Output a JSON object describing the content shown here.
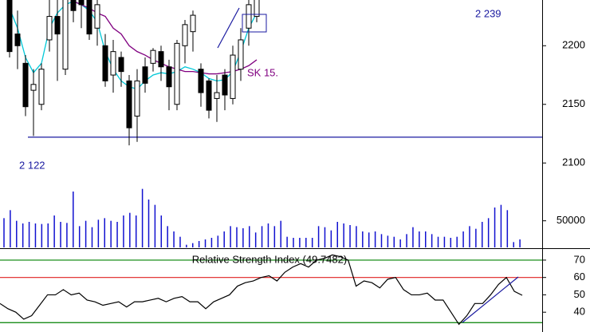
{
  "chart_data": [
    {
      "type": "candlestick",
      "open": [
        2239,
        2210,
        2185,
        2162,
        2150,
        2205,
        2225,
        2180,
        2240,
        2245,
        2240,
        2215,
        2200,
        2175,
        2190,
        2170,
        2140,
        2182,
        2185,
        2195,
        2182,
        2150,
        2200,
        2212,
        2180,
        2170,
        2155,
        2175,
        2155,
        2180,
        2215,
        2225
      ],
      "high": [
        2250,
        2230,
        2192,
        2180,
        2185,
        2250,
        2240,
        2250,
        2250,
        2250,
        2250,
        2245,
        2210,
        2205,
        2195,
        2175,
        2180,
        2190,
        2198,
        2200,
        2188,
        2205,
        2222,
        2230,
        2185,
        2172,
        2175,
        2180,
        2200,
        2215,
        2240,
        2250
      ],
      "low": [
        2190,
        2180,
        2140,
        2123,
        2145,
        2195,
        2170,
        2175,
        2220,
        2215,
        2205,
        2200,
        2165,
        2160,
        2165,
        2115,
        2118,
        2160,
        2178,
        2170,
        2145,
        2145,
        2185,
        2195,
        2148,
        2138,
        2135,
        2145,
        2150,
        2170,
        2200,
        2220
      ],
      "close": [
        2195,
        2200,
        2148,
        2167,
        2180,
        2225,
        2210,
        2240,
        2230,
        2235,
        2210,
        2235,
        2170,
        2195,
        2178,
        2130,
        2170,
        2168,
        2196,
        2182,
        2165,
        2202,
        2218,
        2226,
        2160,
        2145,
        2160,
        2158,
        2192,
        2205,
        2235,
        2240
      ],
      "series": [
        {
          "color": "#00c8d8",
          "values": [
            2232,
            2215,
            2190,
            2177,
            2185,
            2215,
            2228,
            2235,
            2238,
            2235,
            2230,
            2220,
            2195,
            2180,
            2170,
            2165,
            2163,
            2170,
            2175,
            2177,
            2176,
            2178,
            2182,
            2180,
            2177,
            2172,
            2170,
            2171,
            2178,
            2195,
            2215,
            2228
          ]
        },
        {
          "color": "#800080",
          "values": [
            null,
            null,
            null,
            null,
            null,
            null,
            null,
            null,
            2238,
            2235,
            2232,
            2228,
            2225,
            2215,
            2210,
            2200,
            2195,
            2192,
            2188,
            2185,
            2182,
            2180,
            2178,
            2178,
            2177,
            2176,
            2176,
            2177,
            2178,
            2180,
            2183,
            2188
          ]
        }
      ],
      "hlines": [
        {
          "value": 2122,
          "color": "#1a1aa0"
        }
      ],
      "annotations": [
        "2 239",
        "2 122",
        "SK 15."
      ],
      "ylim": [
        2028,
        2239
      ],
      "yticks": [
        2200,
        2150,
        2100
      ]
    },
    {
      "type": "bar",
      "color": "#1010d0",
      "values": [
        55000,
        70000,
        50000,
        45000,
        48000,
        45000,
        44000,
        45000,
        60000,
        48000,
        46000,
        105000,
        40000,
        50000,
        38000,
        52000,
        55000,
        50000,
        48000,
        60000,
        65000,
        60000,
        110000,
        90000,
        80000,
        60000,
        40000,
        30000,
        20000,
        5000,
        8000,
        12000,
        15000,
        18000,
        22000,
        30000,
        40000,
        38000,
        36000,
        40000,
        28000,
        40000,
        45000,
        40000,
        50000,
        20000,
        18000,
        18000,
        18000,
        18000,
        40000,
        38000,
        32000,
        48000,
        45000,
        42000,
        40000,
        30000,
        28000,
        30000,
        25000,
        22000,
        20000,
        15000,
        25000,
        38000,
        30000,
        30000,
        25000,
        20000,
        20000,
        18000,
        20000,
        30000,
        40000,
        35000,
        48000,
        55000,
        75000,
        80000,
        70000,
        10000,
        15000
      ],
      "ylim": [
        0,
        120000
      ],
      "yticks": [
        50000
      ]
    },
    {
      "type": "line",
      "title": "Relative Strength Index (49.7482)",
      "color": "#000000",
      "values": [
        45,
        42,
        40,
        36,
        38,
        44,
        50,
        50,
        53,
        50,
        51,
        47,
        46,
        44,
        45,
        46,
        43,
        46,
        46,
        47,
        48,
        46,
        48,
        49,
        46,
        46,
        42,
        46,
        48,
        50,
        55,
        57,
        58,
        60,
        61,
        58,
        63,
        66,
        68,
        66,
        70,
        71,
        73,
        72,
        70,
        55,
        58,
        57,
        54,
        59,
        60,
        53,
        50,
        50,
        51,
        47,
        47,
        40,
        33,
        38,
        45,
        45,
        50,
        56,
        60,
        52,
        49.7482
      ],
      "hlines": [
        {
          "value": 70,
          "color": "#008000"
        },
        {
          "value": 60,
          "color": "#e02020"
        },
        {
          "value": 34,
          "color": "#008000"
        }
      ],
      "ylim": [
        28.6,
        76.4
      ],
      "yticks": [
        70,
        60,
        50,
        40
      ]
    }
  ]
}
